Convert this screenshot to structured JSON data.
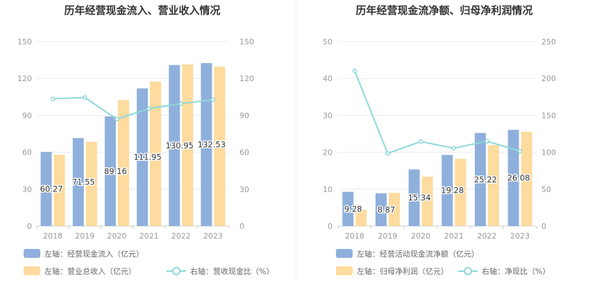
{
  "colors": {
    "bar_primary": "#8fb0dc",
    "bar_secondary": "#fedb9e",
    "line": "#8dd7da",
    "grid": "#e8ecf2",
    "axis": "#cccccc"
  },
  "chart_data": [
    {
      "type": "bar",
      "title": "历年经营现金流入、营业收入情况",
      "categories": [
        "2018",
        "2019",
        "2020",
        "2021",
        "2022",
        "2023"
      ],
      "ylim_left": [
        0,
        150
      ],
      "ylim_right": [
        0,
        150
      ],
      "ticks_left": [
        0,
        30,
        60,
        90,
        120,
        150
      ],
      "ticks_right": [
        0,
        30,
        60,
        90,
        120,
        150
      ],
      "series": [
        {
          "name": "左轴：经营现金流入（亿元）",
          "kind": "bar",
          "axis": "left",
          "values": [
            60.27,
            71.55,
            89.16,
            111.95,
            130.95,
            132.53
          ],
          "labels": [
            "60.27",
            "71.55",
            "89.16",
            "111.95",
            "130.95",
            "132.53"
          ]
        },
        {
          "name": "左轴：营业总收入（亿元）",
          "kind": "bar",
          "axis": "left",
          "values": [
            58.0,
            68.5,
            102.5,
            117.5,
            131.5,
            129.5
          ]
        },
        {
          "name": "右轴：营收现金比（%）",
          "kind": "line",
          "axis": "right",
          "values": [
            103.5,
            104.5,
            87.0,
            95.5,
            99.5,
            102.8
          ]
        }
      ]
    },
    {
      "type": "bar",
      "title": "历年经营现金流净额、归母净利润情况",
      "categories": [
        "2018",
        "2019",
        "2020",
        "2021",
        "2022",
        "2023"
      ],
      "ylim_left": [
        0,
        50
      ],
      "ylim_right": [
        0,
        250
      ],
      "ticks_left": [
        0,
        10,
        20,
        30,
        40,
        50
      ],
      "ticks_right": [
        0,
        50,
        100,
        150,
        200,
        250
      ],
      "series": [
        {
          "name": "左轴：经营活动现金流净额（亿元）",
          "kind": "bar",
          "axis": "left",
          "values": [
            9.28,
            8.87,
            15.34,
            19.28,
            25.22,
            26.08
          ],
          "labels": [
            "9.28",
            "8.87",
            "15.34",
            "19.28",
            "25.22",
            "26.08"
          ]
        },
        {
          "name": "左轴：归母净利润（亿元）",
          "kind": "bar",
          "axis": "left",
          "values": [
            4.4,
            9.0,
            13.4,
            18.2,
            21.9,
            25.6
          ]
        },
        {
          "name": "右轴：净现比（%）",
          "kind": "line",
          "axis": "right",
          "values": [
            210.5,
            98.5,
            114.5,
            105.5,
            115.0,
            101.5
          ]
        }
      ]
    }
  ]
}
